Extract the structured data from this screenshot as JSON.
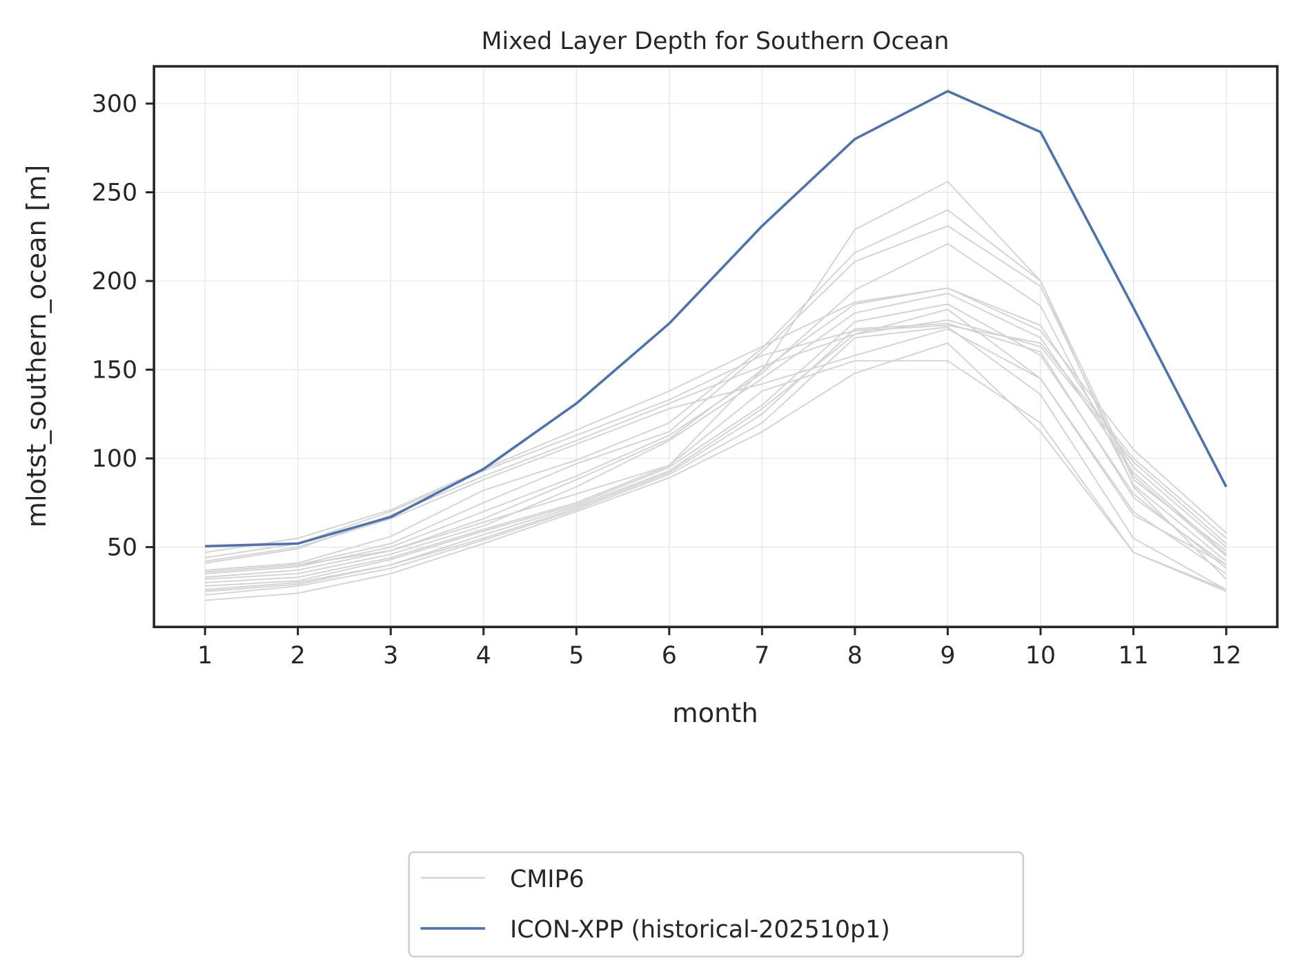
{
  "chart_data": {
    "type": "line",
    "title": "Mixed Layer Depth for Southern Ocean",
    "xlabel": "month",
    "ylabel": "mlotst_southern_ocean [m]",
    "x": [
      1,
      2,
      3,
      4,
      5,
      6,
      7,
      8,
      9,
      10,
      11,
      12
    ],
    "xticks": [
      "1",
      "2",
      "3",
      "4",
      "5",
      "6",
      "7",
      "8",
      "9",
      "10",
      "11",
      "12"
    ],
    "yticks": [
      50,
      100,
      150,
      200,
      250,
      300
    ],
    "xlim": [
      0.45,
      12.55
    ],
    "ylim": [
      5,
      321
    ],
    "grid": true,
    "legend_position": "bottom-center",
    "legend": [
      {
        "label": "CMIP6",
        "color": "#d3d3d3"
      },
      {
        "label": "ICON-XPP (historical-202510p1)",
        "color": "#4c72b0"
      }
    ],
    "series": [
      {
        "name": "CMIP6",
        "color": "#d3d3d3",
        "members": [
          [
            47,
            55,
            71,
            94,
            116,
            138,
            163,
            188,
            196,
            172,
            105,
            58
          ],
          [
            44,
            52,
            70,
            93,
            113,
            133,
            158,
            172,
            175,
            165,
            100,
            55
          ],
          [
            41,
            49,
            68,
            90,
            110,
            131,
            152,
            170,
            178,
            163,
            98,
            52
          ],
          [
            37,
            41,
            56,
            82,
            99,
            120,
            162,
            216,
            240,
            200,
            90,
            45
          ],
          [
            36,
            40,
            52,
            75,
            97,
            115,
            160,
            211,
            231,
            197,
            88,
            48
          ],
          [
            35,
            39,
            50,
            70,
            90,
            113,
            148,
            195,
            221,
            186,
            85,
            42
          ],
          [
            33,
            37,
            48,
            66,
            88,
            111,
            150,
            187,
            196,
            175,
            95,
            50
          ],
          [
            32,
            35,
            46,
            62,
            84,
            110,
            145,
            182,
            193,
            168,
            92,
            46
          ],
          [
            30,
            33,
            44,
            60,
            75,
            96,
            138,
            155,
            155,
            120,
            47,
            26
          ],
          [
            28,
            31,
            43,
            59,
            74,
            95,
            130,
            177,
            187,
            158,
            80,
            38
          ],
          [
            26,
            30,
            40,
            57,
            73,
            93,
            128,
            170,
            184,
            145,
            70,
            35
          ],
          [
            25,
            29,
            40,
            55,
            72,
            92,
            125,
            173,
            176,
            160,
            78,
            40
          ],
          [
            23,
            28,
            38,
            54,
            71,
            91,
            120,
            168,
            174,
            136,
            55,
            26
          ],
          [
            20,
            24,
            35,
            52,
            70,
            89,
            115,
            148,
            165,
            115,
            47,
            25
          ],
          [
            36,
            40,
            48,
            64,
            80,
            96,
            150,
            229,
            256,
            200,
            84,
            32
          ],
          [
            42,
            50,
            66,
            88,
            108,
            128,
            142,
            158,
            173,
            145,
            68,
            40
          ]
        ]
      },
      {
        "name": "ICON-XPP (historical-202510p1)",
        "color": "#4c72b0",
        "values": [
          50.5,
          52,
          67,
          94,
          131,
          176,
          231,
          280,
          307,
          284,
          185,
          84
        ]
      }
    ]
  }
}
